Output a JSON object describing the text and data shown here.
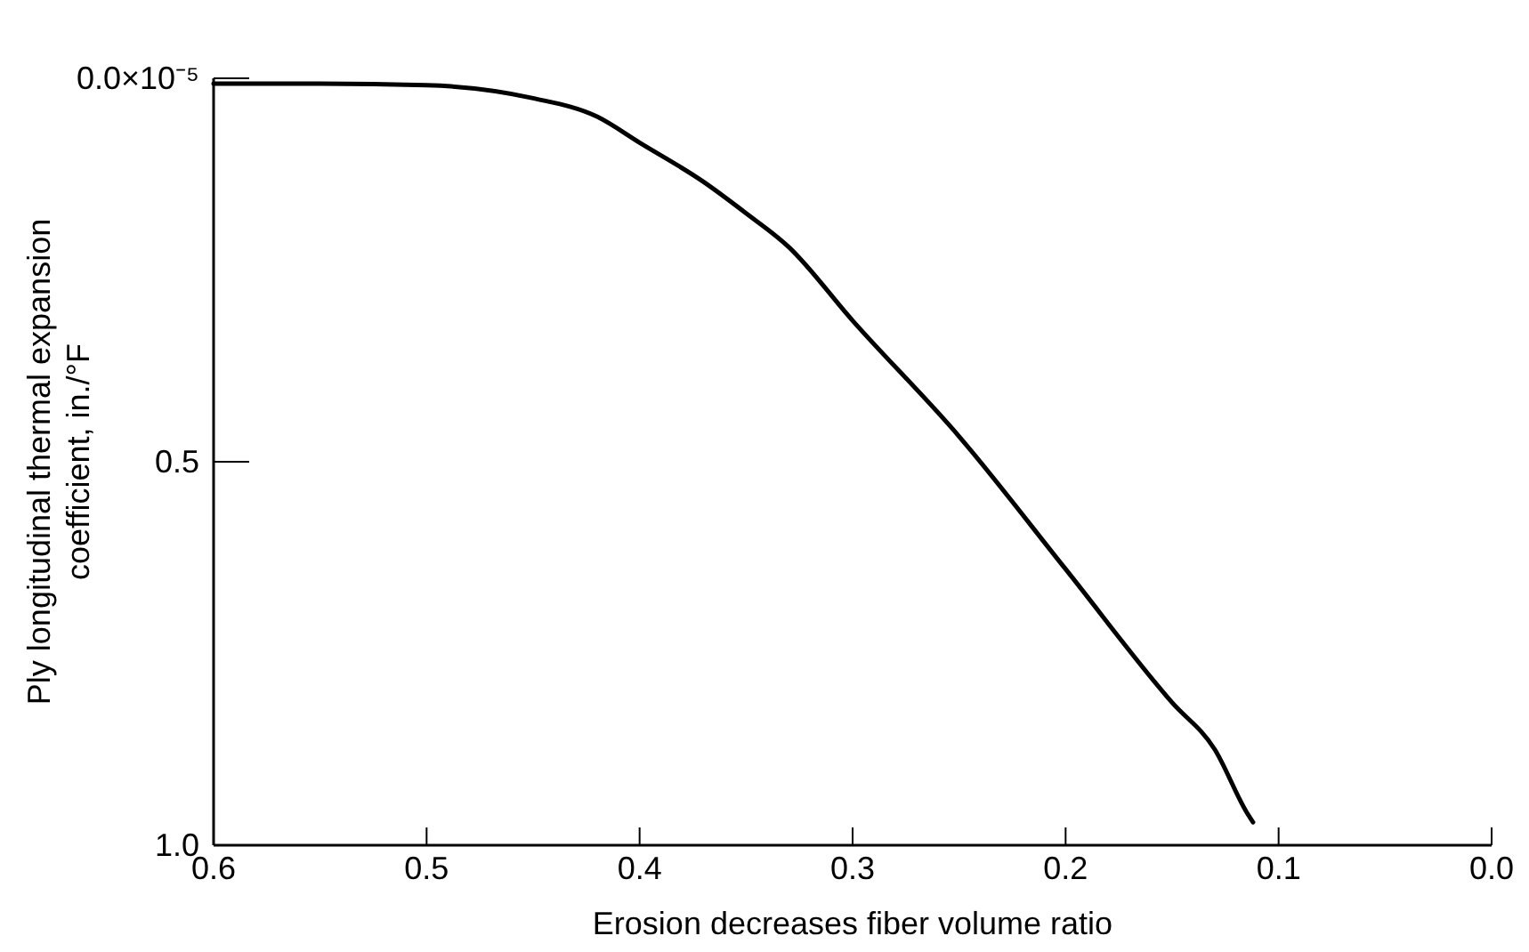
{
  "chart_data": {
    "type": "line",
    "xlabel": "Erosion decreases fiber volume ratio",
    "ylabel": "Ply longitudinal thermal expansion\ncoefficient, in./°F",
    "x": [
      0.6,
      0.55,
      0.5,
      0.45,
      0.42,
      0.4,
      0.37,
      0.35,
      0.33,
      0.3,
      0.25,
      0.2,
      0.15,
      0.13,
      0.115,
      0.112
    ],
    "series": [
      {
        "color": "#000000",
        "values": [
          0.007,
          0.007,
          0.009,
          0.026,
          0.05,
          0.084,
          0.135,
          0.176,
          0.22,
          0.316,
          0.467,
          0.64,
          0.814,
          0.875,
          0.957,
          0.97
        ]
      }
    ],
    "xlim": [
      0.6,
      0.0
    ],
    "xticks": [
      0.6,
      0.5,
      0.4,
      0.3,
      0.2,
      0.1,
      {
        "value": 0.0,
        "label": "0.0"
      }
    ],
    "ylim": [
      1.0,
      0.0
    ],
    "yticks": [
      {
        "value": 0.0,
        "label": "0.0×10⁻⁵"
      },
      0.5,
      {
        "value": 1.0,
        "label": "1.0"
      }
    ],
    "grid": false,
    "marker": "none",
    "line_style": "solid"
  }
}
